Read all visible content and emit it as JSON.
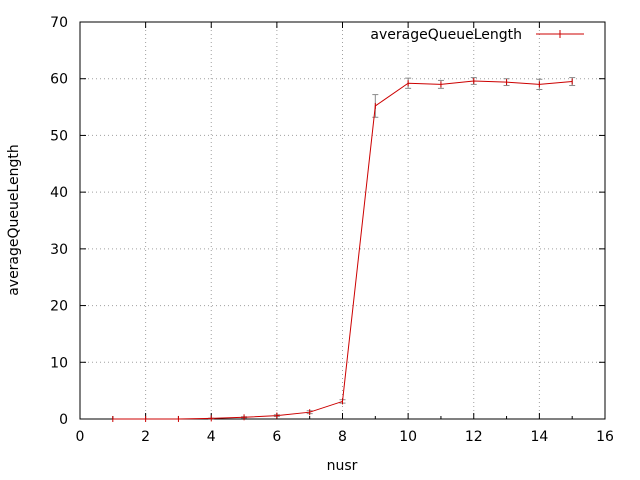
{
  "chart_data": {
    "type": "line",
    "title": "",
    "xlabel": "nusr",
    "ylabel": "averageQueueLength",
    "xlim": [
      0,
      16
    ],
    "ylim": [
      0,
      70
    ],
    "xticks": [
      0,
      2,
      4,
      6,
      8,
      10,
      12,
      14,
      16
    ],
    "yticks": [
      0,
      10,
      20,
      30,
      40,
      50,
      60,
      70
    ],
    "grid": true,
    "legend_position": "top-right",
    "colors": {
      "series": "#cc0000",
      "error_bars": "#8a8a8a",
      "grid": "#a0a0a0"
    },
    "series": [
      {
        "name": "averageQueueLength",
        "x": [
          1,
          2,
          3,
          4,
          5,
          6,
          7,
          8,
          9,
          10,
          11,
          12,
          13,
          14,
          15
        ],
        "y": [
          0.0,
          0.0,
          0.01,
          0.1,
          0.3,
          0.6,
          1.2,
          3.1,
          55.2,
          59.2,
          59.0,
          59.6,
          59.4,
          59.0,
          59.5
        ],
        "error": [
          0.0,
          0.0,
          0.0,
          0.05,
          0.1,
          0.15,
          0.25,
          0.3,
          2.0,
          0.9,
          0.7,
          0.6,
          0.6,
          0.9,
          0.7
        ]
      }
    ]
  }
}
